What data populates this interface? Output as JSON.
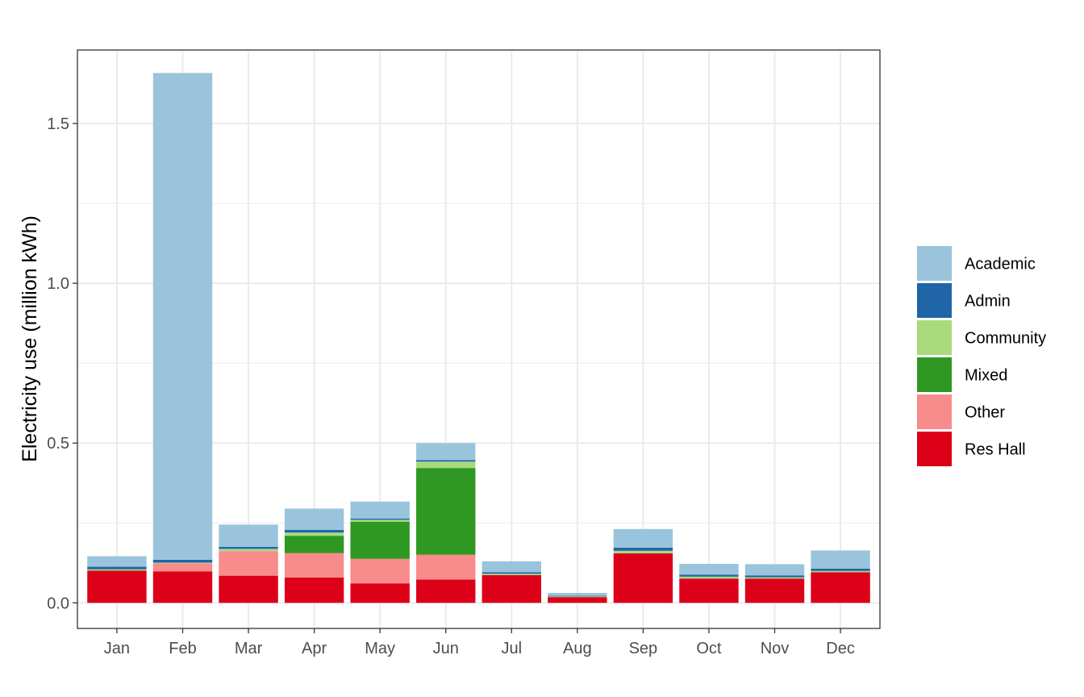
{
  "chart_data": {
    "type": "bar",
    "stacked": true,
    "title": "",
    "xlabel": "",
    "ylabel": "Electricity use (million kWh)",
    "ylim": [
      -0.08,
      1.73
    ],
    "yticks": [
      0.0,
      0.5,
      1.0,
      1.5
    ],
    "ytick_labels": [
      "0.0",
      "0.5",
      "1.0",
      "1.5"
    ],
    "grid": true,
    "legend_position": "right",
    "categories": [
      "Jan",
      "Feb",
      "Mar",
      "Apr",
      "May",
      "Jun",
      "Jul",
      "Aug",
      "Sep",
      "Oct",
      "Nov",
      "Dec"
    ],
    "series": [
      {
        "name": "Res Hall",
        "color": "#DC0019",
        "values": [
          0.101,
          0.098,
          0.085,
          0.079,
          0.061,
          0.073,
          0.087,
          0.018,
          0.155,
          0.076,
          0.076,
          0.096
        ]
      },
      {
        "name": "Other",
        "color": "#F88B8B",
        "values": [
          0.0,
          0.026,
          0.077,
          0.077,
          0.077,
          0.078,
          0.0,
          0.0,
          0.0,
          0.0,
          0.0,
          0.0
        ]
      },
      {
        "name": "Mixed",
        "color": "#2E9822",
        "values": [
          0.0,
          0.0,
          0.0,
          0.054,
          0.116,
          0.271,
          0.0,
          0.0,
          0.0,
          0.0,
          0.0,
          0.0
        ]
      },
      {
        "name": "Community",
        "color": "#A8DA7C",
        "values": [
          0.004,
          0.002,
          0.007,
          0.01,
          0.006,
          0.02,
          0.004,
          0.002,
          0.008,
          0.006,
          0.004,
          0.004
        ]
      },
      {
        "name": "Admin",
        "color": "#1F65A7",
        "values": [
          0.008,
          0.009,
          0.006,
          0.008,
          0.004,
          0.005,
          0.005,
          0.002,
          0.01,
          0.006,
          0.006,
          0.007
        ]
      },
      {
        "name": "Academic",
        "color": "#99C4DC",
        "values": [
          0.033,
          1.523,
          0.07,
          0.067,
          0.053,
          0.053,
          0.034,
          0.009,
          0.058,
          0.034,
          0.035,
          0.057
        ]
      }
    ],
    "legend_order": [
      "Academic",
      "Admin",
      "Community",
      "Mixed",
      "Other",
      "Res Hall"
    ]
  }
}
